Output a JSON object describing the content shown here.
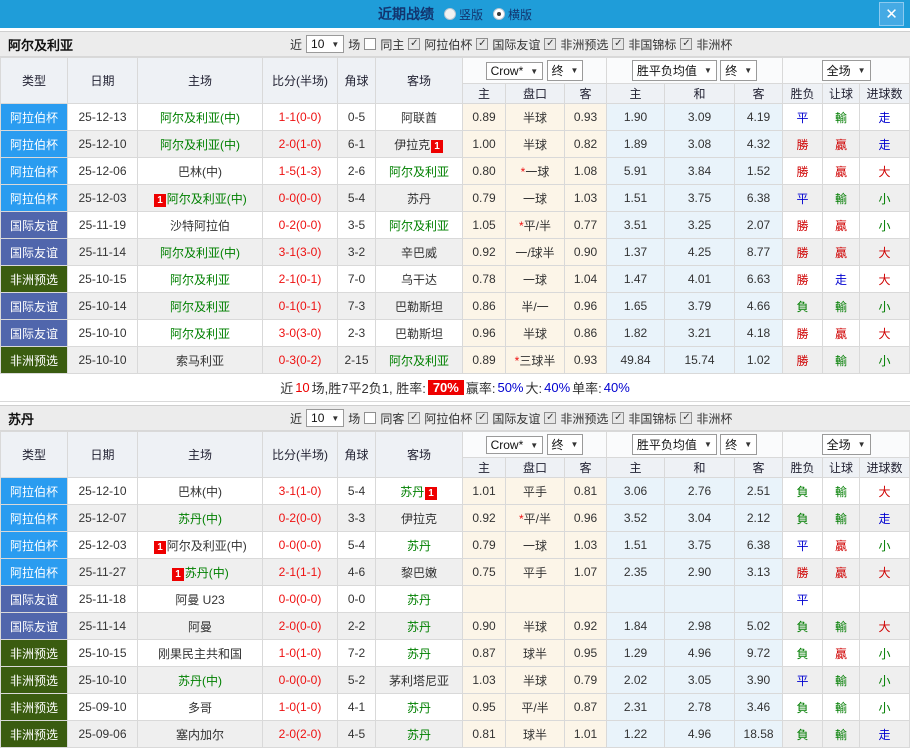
{
  "topbar": {
    "title": "近期战绩",
    "vertical_label": "竖版",
    "horizontal_label": "横版",
    "selected_layout": "横版",
    "close_label": "✕"
  },
  "filters": {
    "near_label": "近",
    "count": "10",
    "matches_label": "场",
    "comps": [
      "阿拉伯杯",
      "国际友谊",
      "非洲预选",
      "非国锦标",
      "非洲杯"
    ]
  },
  "selects": {
    "crown": "Crow*",
    "final": "终",
    "avg": "胜平负均值",
    "fullmatch": "全场"
  },
  "columns": {
    "left": [
      "类型",
      "日期",
      "主场",
      "比分(半场)",
      "角球",
      "客场"
    ],
    "sub": [
      "主",
      "盘口",
      "客",
      "主",
      "和",
      "客",
      "胜负",
      "让球",
      "进球数"
    ]
  },
  "badge_label": "1",
  "colors": {
    "topbar": "#1f9dd9",
    "type": {
      "阿拉伯杯": "#2a9cf0",
      "国际友谊": "#5066ac",
      "非洲预选": "#3a5c10"
    },
    "score_red": "#ee1111",
    "team_green": "#008000",
    "result": {
      "勝": "#cf0000",
      "贏": "#cf0000",
      "大": "#cf0000",
      "平": "#0000cf",
      "走": "#0000cf",
      "負": "#007d00",
      "輸": "#007d00",
      "小": "#007d00"
    }
  },
  "sections": [
    {
      "team": "阿尔及利亚",
      "same_label": "同主",
      "rows": [
        {
          "t": "阿拉伯杯",
          "d": "25-12-13",
          "h": "阿尔及利亚(中)",
          "hg": true,
          "hb": false,
          "s": "1-1",
          "sh": "(0-0)",
          "c": "0-5",
          "a": "阿联酋",
          "ag": false,
          "ab": false,
          "o1": "0.89",
          "hc": "半球",
          "st": false,
          "o2": "0.93",
          "w": "1.90",
          "dr": "3.09",
          "l": "4.19",
          "r1": "平",
          "r2": "輸",
          "r3": "走"
        },
        {
          "t": "阿拉伯杯",
          "d": "25-12-10",
          "h": "阿尔及利亚(中)",
          "hg": true,
          "hb": false,
          "s": "2-0",
          "sh": "(1-0)",
          "c": "6-1",
          "a": "伊拉克",
          "ag": false,
          "ab": true,
          "o1": "1.00",
          "hc": "半球",
          "st": false,
          "o2": "0.82",
          "w": "1.89",
          "dr": "3.08",
          "l": "4.32",
          "r1": "勝",
          "r2": "贏",
          "r3": "走"
        },
        {
          "t": "阿拉伯杯",
          "d": "25-12-06",
          "h": "巴林(中)",
          "hg": false,
          "hb": false,
          "s": "1-5",
          "sh": "(1-3)",
          "c": "2-6",
          "a": "阿尔及利亚",
          "ag": true,
          "ab": false,
          "o1": "0.80",
          "hc": "一球",
          "st": true,
          "o2": "1.08",
          "w": "5.91",
          "dr": "3.84",
          "l": "1.52",
          "r1": "勝",
          "r2": "贏",
          "r3": "大"
        },
        {
          "t": "阿拉伯杯",
          "d": "25-12-03",
          "h": "阿尔及利亚(中)",
          "hg": true,
          "hb": true,
          "s": "0-0",
          "sh": "(0-0)",
          "c": "5-4",
          "a": "苏丹",
          "ag": false,
          "ab": false,
          "o1": "0.79",
          "hc": "一球",
          "st": false,
          "o2": "1.03",
          "w": "1.51",
          "dr": "3.75",
          "l": "6.38",
          "r1": "平",
          "r2": "輸",
          "r3": "小"
        },
        {
          "t": "国际友谊",
          "d": "25-11-19",
          "h": "沙特阿拉伯",
          "hg": false,
          "hb": false,
          "s": "0-2",
          "sh": "(0-0)",
          "c": "3-5",
          "a": "阿尔及利亚",
          "ag": true,
          "ab": false,
          "o1": "1.05",
          "hc": "平/半",
          "st": true,
          "o2": "0.77",
          "w": "3.51",
          "dr": "3.25",
          "l": "2.07",
          "r1": "勝",
          "r2": "贏",
          "r3": "小"
        },
        {
          "t": "国际友谊",
          "d": "25-11-14",
          "h": "阿尔及利亚(中)",
          "hg": true,
          "hb": false,
          "s": "3-1",
          "sh": "(3-0)",
          "c": "3-2",
          "a": "辛巴威",
          "ag": false,
          "ab": false,
          "o1": "0.92",
          "hc": "一/球半",
          "st": false,
          "o2": "0.90",
          "w": "1.37",
          "dr": "4.25",
          "l": "8.77",
          "r1": "勝",
          "r2": "贏",
          "r3": "大"
        },
        {
          "t": "非洲预选",
          "d": "25-10-15",
          "h": "阿尔及利亚",
          "hg": true,
          "hb": false,
          "s": "2-1",
          "sh": "(0-1)",
          "c": "7-0",
          "a": "乌干达",
          "ag": false,
          "ab": false,
          "o1": "0.78",
          "hc": "一球",
          "st": false,
          "o2": "1.04",
          "w": "1.47",
          "dr": "4.01",
          "l": "6.63",
          "r1": "勝",
          "r2": "走",
          "r3": "大"
        },
        {
          "t": "国际友谊",
          "d": "25-10-14",
          "h": "阿尔及利亚",
          "hg": true,
          "hb": false,
          "s": "0-1",
          "sh": "(0-1)",
          "c": "7-3",
          "a": "巴勒斯坦",
          "ag": false,
          "ab": false,
          "o1": "0.86",
          "hc": "半/一",
          "st": false,
          "o2": "0.96",
          "w": "1.65",
          "dr": "3.79",
          "l": "4.66",
          "r1": "負",
          "r2": "輸",
          "r3": "小"
        },
        {
          "t": "国际友谊",
          "d": "25-10-10",
          "h": "阿尔及利亚",
          "hg": true,
          "hb": false,
          "s": "3-0",
          "sh": "(3-0)",
          "c": "2-3",
          "a": "巴勒斯坦",
          "ag": false,
          "ab": false,
          "o1": "0.96",
          "hc": "半球",
          "st": false,
          "o2": "0.86",
          "w": "1.82",
          "dr": "3.21",
          "l": "4.18",
          "r1": "勝",
          "r2": "贏",
          "r3": "大"
        },
        {
          "t": "非洲预选",
          "d": "25-10-10",
          "h": "索马利亚",
          "hg": false,
          "hb": false,
          "s": "0-3",
          "sh": "(0-2)",
          "c": "2-15",
          "a": "阿尔及利亚",
          "ag": true,
          "ab": false,
          "o1": "0.89",
          "hc": "三球半",
          "st": true,
          "o2": "0.93",
          "w": "49.84",
          "dr": "15.74",
          "l": "1.02",
          "r1": "勝",
          "r2": "輸",
          "r3": "小"
        }
      ],
      "summary": [
        {
          "t": "近"
        },
        {
          "t": "10",
          "c": "#ee0000"
        },
        {
          "t": "场,胜7平2负1, 胜率:"
        },
        {
          "t": "70%",
          "hl": true
        },
        {
          "t": " 赢率:"
        },
        {
          "t": "50%",
          "c": "#0000cf"
        },
        {
          "t": " 大:"
        },
        {
          "t": "40%",
          "c": "#0000cf"
        },
        {
          "t": " 单率:"
        },
        {
          "t": "40%",
          "c": "#0000cf"
        }
      ]
    },
    {
      "team": "苏丹",
      "same_label": "同客",
      "rows": [
        {
          "t": "阿拉伯杯",
          "d": "25-12-10",
          "h": "巴林(中)",
          "hg": false,
          "hb": false,
          "s": "3-1",
          "sh": "(1-0)",
          "c": "5-4",
          "a": "苏丹",
          "ag": true,
          "ab": true,
          "o1": "1.01",
          "hc": "平手",
          "st": false,
          "o2": "0.81",
          "w": "3.06",
          "dr": "2.76",
          "l": "2.51",
          "r1": "負",
          "r2": "輸",
          "r3": "大"
        },
        {
          "t": "阿拉伯杯",
          "d": "25-12-07",
          "h": "苏丹(中)",
          "hg": true,
          "hb": false,
          "s": "0-2",
          "sh": "(0-0)",
          "c": "3-3",
          "a": "伊拉克",
          "ag": false,
          "ab": false,
          "o1": "0.92",
          "hc": "平/半",
          "st": true,
          "o2": "0.96",
          "w": "3.52",
          "dr": "3.04",
          "l": "2.12",
          "r1": "負",
          "r2": "輸",
          "r3": "走"
        },
        {
          "t": "阿拉伯杯",
          "d": "25-12-03",
          "h": "阿尔及利亚(中)",
          "hg": false,
          "hb": true,
          "s": "0-0",
          "sh": "(0-0)",
          "c": "5-4",
          "a": "苏丹",
          "ag": true,
          "ab": false,
          "o1": "0.79",
          "hc": "一球",
          "st": false,
          "o2": "1.03",
          "w": "1.51",
          "dr": "3.75",
          "l": "6.38",
          "r1": "平",
          "r2": "贏",
          "r3": "小"
        },
        {
          "t": "阿拉伯杯",
          "d": "25-11-27",
          "h": "苏丹(中)",
          "hg": true,
          "hb": true,
          "s": "2-1",
          "sh": "(1-1)",
          "c": "4-6",
          "a": "黎巴嫩",
          "ag": false,
          "ab": false,
          "o1": "0.75",
          "hc": "平手",
          "st": false,
          "o2": "1.07",
          "w": "2.35",
          "dr": "2.90",
          "l": "3.13",
          "r1": "勝",
          "r2": "贏",
          "r3": "大"
        },
        {
          "t": "国际友谊",
          "d": "25-11-18",
          "h": "阿曼 U23",
          "hg": false,
          "hb": false,
          "s": "0-0",
          "sh": "(0-0)",
          "c": "0-0",
          "a": "苏丹",
          "ag": true,
          "ab": false,
          "o1": "",
          "hc": "",
          "st": false,
          "o2": "",
          "w": "",
          "dr": "",
          "l": "",
          "r1": "平",
          "r2": "",
          "r3": ""
        },
        {
          "t": "国际友谊",
          "d": "25-11-14",
          "h": "阿曼",
          "hg": false,
          "hb": false,
          "s": "2-0",
          "sh": "(0-0)",
          "c": "2-2",
          "a": "苏丹",
          "ag": true,
          "ab": false,
          "o1": "0.90",
          "hc": "半球",
          "st": false,
          "o2": "0.92",
          "w": "1.84",
          "dr": "2.98",
          "l": "5.02",
          "r1": "負",
          "r2": "輸",
          "r3": "大"
        },
        {
          "t": "非洲预选",
          "d": "25-10-15",
          "h": "刚果民主共和国",
          "hg": false,
          "hb": false,
          "s": "1-0",
          "sh": "(1-0)",
          "c": "7-2",
          "a": "苏丹",
          "ag": true,
          "ab": false,
          "o1": "0.87",
          "hc": "球半",
          "st": false,
          "o2": "0.95",
          "w": "1.29",
          "dr": "4.96",
          "l": "9.72",
          "r1": "負",
          "r2": "贏",
          "r3": "小"
        },
        {
          "t": "非洲预选",
          "d": "25-10-10",
          "h": "苏丹(中)",
          "hg": true,
          "hb": false,
          "s": "0-0",
          "sh": "(0-0)",
          "c": "5-2",
          "a": "茅利塔尼亚",
          "ag": false,
          "ab": false,
          "o1": "1.03",
          "hc": "半球",
          "st": false,
          "o2": "0.79",
          "w": "2.02",
          "dr": "3.05",
          "l": "3.90",
          "r1": "平",
          "r2": "輸",
          "r3": "小"
        },
        {
          "t": "非洲预选",
          "d": "25-09-10",
          "h": "多哥",
          "hg": false,
          "hb": false,
          "s": "1-0",
          "sh": "(1-0)",
          "c": "4-1",
          "a": "苏丹",
          "ag": true,
          "ab": false,
          "o1": "0.95",
          "hc": "平/半",
          "st": false,
          "o2": "0.87",
          "w": "2.31",
          "dr": "2.78",
          "l": "3.46",
          "r1": "負",
          "r2": "輸",
          "r3": "小"
        },
        {
          "t": "非洲预选",
          "d": "25-09-06",
          "h": "塞内加尔",
          "hg": false,
          "hb": false,
          "s": "2-0",
          "sh": "(2-0)",
          "c": "4-5",
          "a": "苏丹",
          "ag": true,
          "ab": false,
          "o1": "0.81",
          "hc": "球半",
          "st": false,
          "o2": "1.01",
          "w": "1.22",
          "dr": "4.96",
          "l": "18.58",
          "r1": "負",
          "r2": "輸",
          "r3": "走"
        }
      ],
      "summary": null
    }
  ]
}
